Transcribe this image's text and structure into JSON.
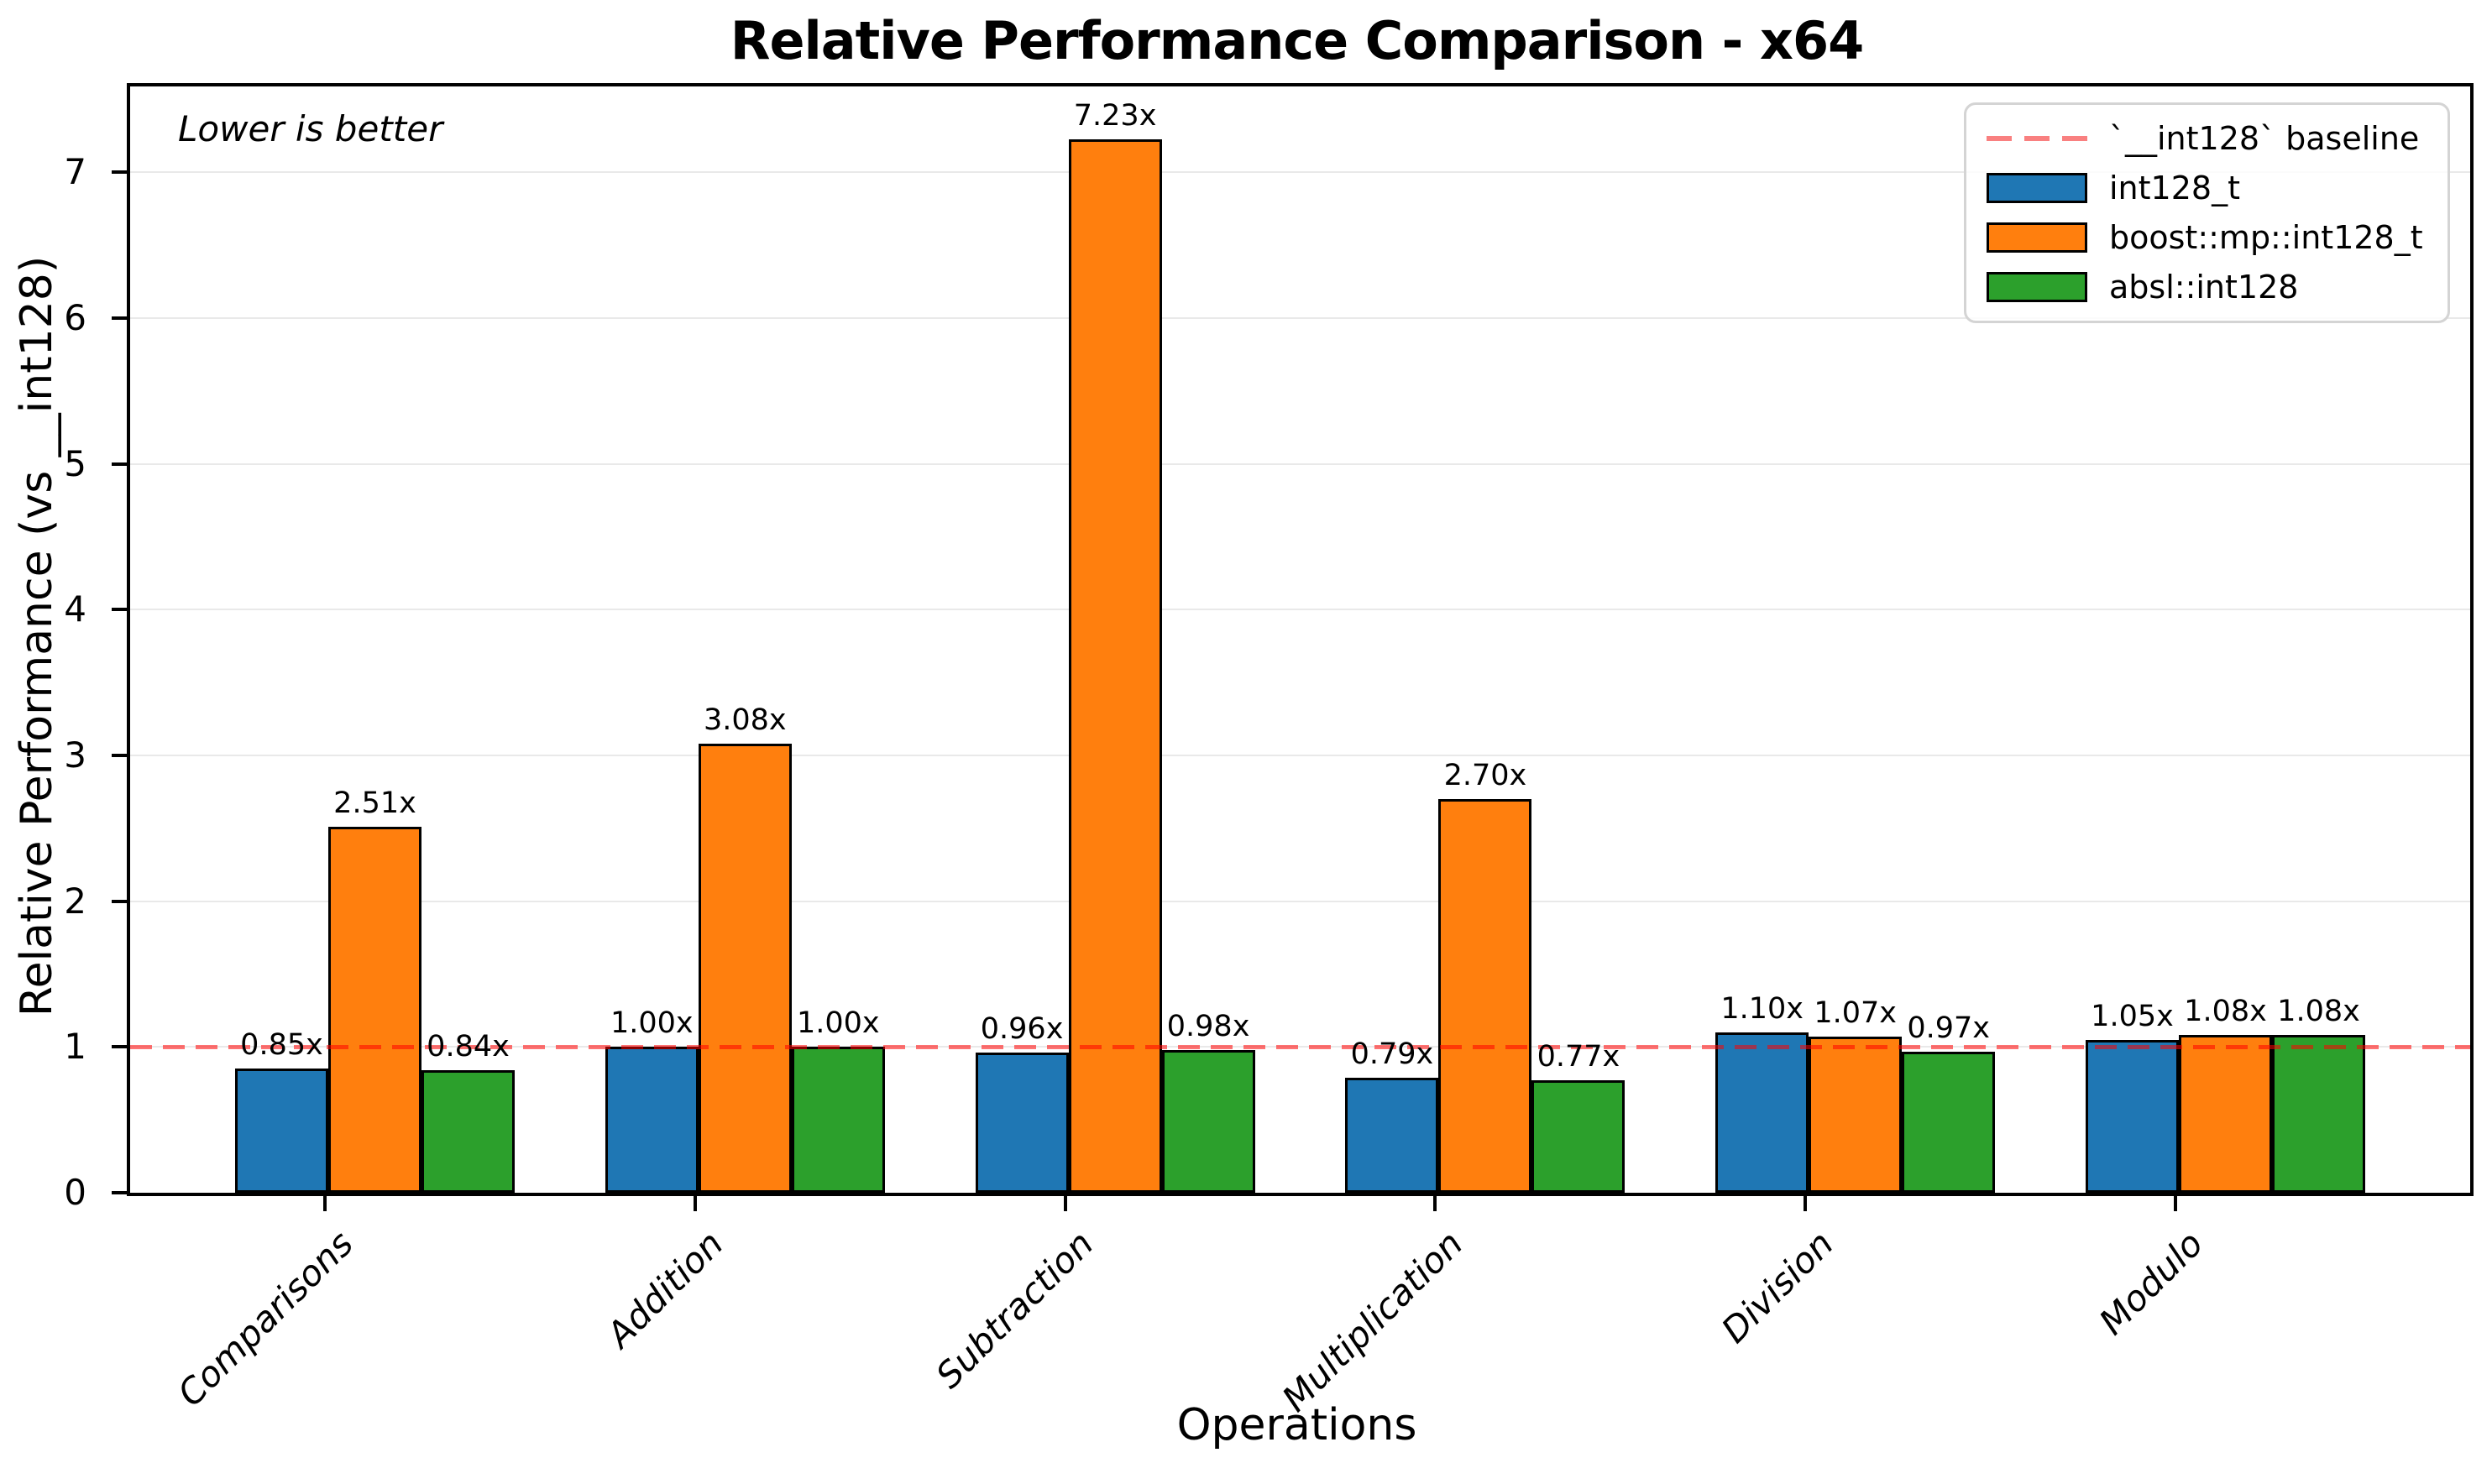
{
  "title": "Relative Performance Comparison - x64",
  "annotation": "Lower is better",
  "chart_data": {
    "type": "bar",
    "title": "Relative Performance Comparison - x64",
    "xlabel": "Operations",
    "ylabel": "Relative Performance (vs __int128)",
    "categories": [
      "Comparisons",
      "Addition",
      "Subtraction",
      "Multiplication",
      "Division",
      "Modulo"
    ],
    "series": [
      {
        "name": "int128_t",
        "color": "#1f77b4",
        "values": [
          0.85,
          1.0,
          0.96,
          0.79,
          1.1,
          1.05
        ],
        "labels": [
          "0.85x",
          "1.00x",
          "0.96x",
          "0.79x",
          "1.10x",
          "1.05x"
        ]
      },
      {
        "name": "boost::mp::int128_t",
        "color": "#ff7f0e",
        "values": [
          2.51,
          3.08,
          7.23,
          2.7,
          1.07,
          1.08
        ],
        "labels": [
          "2.51x",
          "3.08x",
          "7.23x",
          "2.70x",
          "1.07x",
          "1.08x"
        ]
      },
      {
        "name": "absl::int128",
        "color": "#2ca02c",
        "values": [
          0.84,
          1.0,
          0.98,
          0.77,
          0.97,
          1.08
        ],
        "labels": [
          "0.84x",
          "1.00x",
          "0.98x",
          "0.77x",
          "0.97x",
          "1.08x"
        ]
      }
    ],
    "baseline": {
      "value": 1.0,
      "legend_label": "`__int128` baseline",
      "color": "#ff0000",
      "style": "dashed"
    },
    "annotation": "Lower is better",
    "ylim": [
      0,
      7.59
    ],
    "yticks": [
      0,
      1,
      2,
      3,
      4,
      5,
      6,
      7
    ],
    "grid": "horizontal",
    "legend_position": "upper right",
    "colors": {
      "grid": "#e9e9e9",
      "axes": "#000000",
      "background": "#ffffff"
    }
  }
}
